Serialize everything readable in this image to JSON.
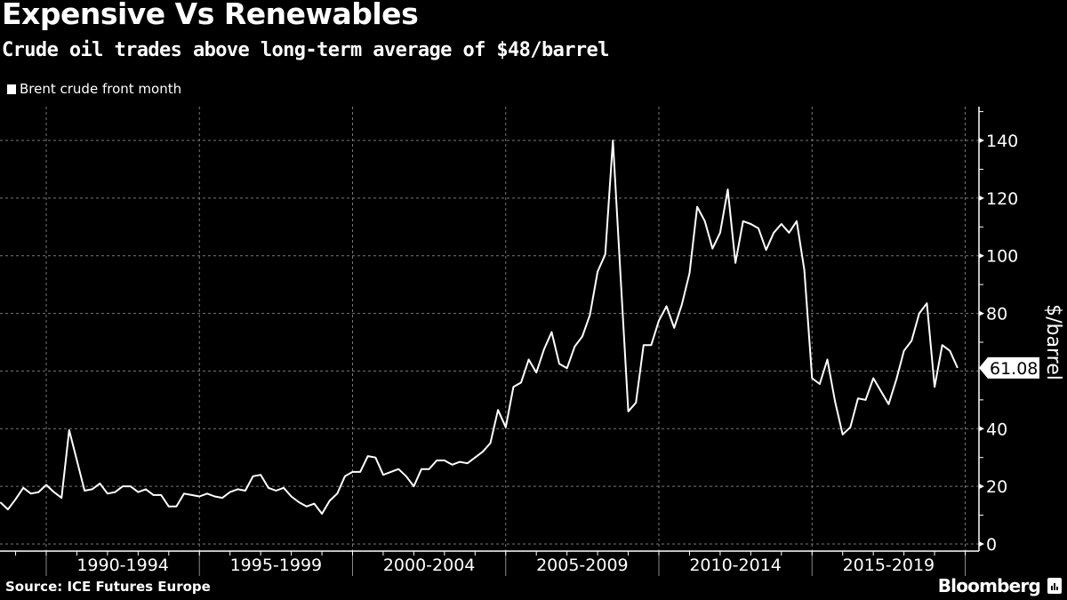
{
  "header": {
    "title": "Expensive Vs Renewables",
    "subtitle": "Crude oil trades above long-term average of $48/barrel"
  },
  "footer": {
    "source": "Source: ICE Futures Europe",
    "brand": "Bloomberg",
    "brand_icon": "bloomberg-chart-icon"
  },
  "colors": {
    "background": "#000000",
    "line": "#ffffff",
    "grid": "#777777"
  },
  "chart_data": {
    "type": "line",
    "title": "Expensive Vs Renewables",
    "subtitle": "Crude oil trades above long-term average of $48/barrel",
    "xlabel": "",
    "ylabel": "$/barrel",
    "ylim": [
      0,
      150
    ],
    "xlim": [
      1988.5,
      2020.5
    ],
    "yticks": [
      0,
      20,
      40,
      60,
      80,
      100,
      120,
      140
    ],
    "ytick_labels": [
      "0",
      "20",
      "40",
      "",
      "80",
      "100",
      "120",
      "140"
    ],
    "xtick_groups": [
      {
        "label": "1990-1994",
        "start": 1990,
        "end": 1995
      },
      {
        "label": "1995-1999",
        "start": 1995,
        "end": 2000
      },
      {
        "label": "2000-2004",
        "start": 2000,
        "end": 2005
      },
      {
        "label": "2005-2009",
        "start": 2005,
        "end": 2010
      },
      {
        "label": "2010-2014",
        "start": 2010,
        "end": 2015
      },
      {
        "label": "2015-2019",
        "start": 2015,
        "end": 2020
      }
    ],
    "grid": true,
    "legend": {
      "position": "top-left",
      "entries": [
        "Brent crude front month"
      ]
    },
    "last_value_label": "61.08",
    "series": [
      {
        "name": "Brent crude front month",
        "x_start": 1988.5,
        "x_step": 0.25,
        "values": [
          14.5,
          12,
          15.5,
          19.5,
          17.5,
          18,
          20.5,
          18,
          16,
          39.5,
          29,
          18.5,
          19,
          21,
          17.5,
          18,
          20,
          20,
          18,
          19,
          17,
          17,
          13,
          13,
          17.5,
          17,
          16.5,
          17.5,
          16.5,
          16,
          18,
          19,
          18.5,
          23.5,
          24,
          19.5,
          18.5,
          19.5,
          16.5,
          14.5,
          13,
          14,
          10.5,
          15,
          17.5,
          23.5,
          25,
          25,
          30.5,
          30,
          24,
          25,
          26,
          23.5,
          20,
          26,
          26,
          29,
          29,
          27.5,
          28.5,
          28,
          30,
          32,
          35,
          46.5,
          40.5,
          54.5,
          56,
          64,
          59.5,
          67.5,
          73.5,
          62.5,
          61,
          68.5,
          72,
          79.5,
          94.5,
          100.5,
          140,
          93,
          46,
          49,
          69,
          69,
          77.5,
          82.5,
          75,
          83,
          94,
          117,
          112,
          102.5,
          108,
          123,
          97.5,
          112,
          111,
          109.5,
          102,
          108,
          111,
          108,
          112,
          95,
          57.5,
          55.5,
          64,
          49.5,
          38,
          40.5,
          50.5,
          50,
          57.5,
          53,
          48.5,
          57,
          67,
          70.5,
          80,
          83.5,
          54.5,
          69,
          67,
          61.08
        ]
      }
    ]
  }
}
